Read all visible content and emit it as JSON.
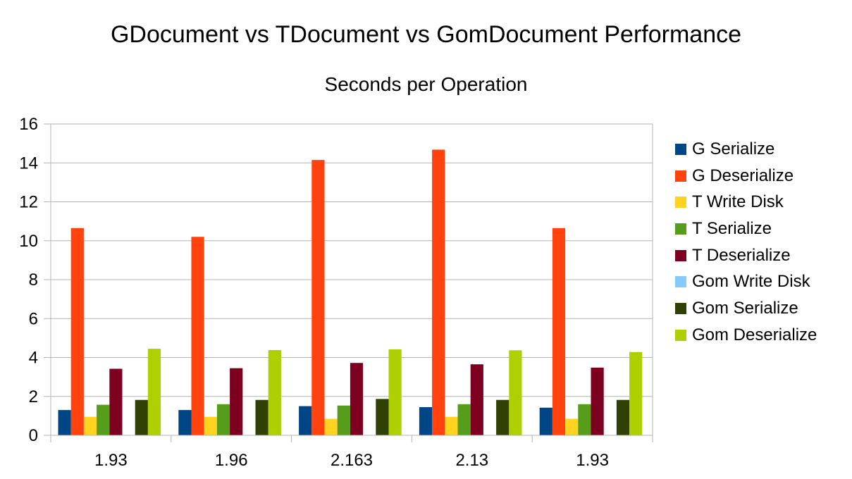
{
  "chart_data": {
    "type": "bar",
    "title": "GDocument vs TDocument vs GomDocument Performance",
    "subtitle": "Seconds per Operation",
    "xlabel": "",
    "ylabel": "",
    "ylim": [
      0,
      16
    ],
    "yticks": [
      0,
      2,
      4,
      6,
      8,
      10,
      12,
      14,
      16
    ],
    "grid": true,
    "legend_position": "right",
    "categories": [
      "1.93",
      "1.96",
      "2.163",
      "2.13",
      "1.93"
    ],
    "series": [
      {
        "name": "G Serialize",
        "color": "#004586",
        "values": [
          1.3,
          1.3,
          1.5,
          1.45,
          1.42
        ]
      },
      {
        "name": "G Deserialize",
        "color": "#ff420e",
        "values": [
          10.65,
          10.2,
          14.15,
          14.68,
          10.65
        ]
      },
      {
        "name": "T Write Disk",
        "color": "#ffd320",
        "values": [
          0.95,
          0.95,
          0.85,
          0.95,
          0.85
        ]
      },
      {
        "name": "T Serialize",
        "color": "#579d1c",
        "values": [
          1.57,
          1.6,
          1.53,
          1.6,
          1.6
        ]
      },
      {
        "name": "T Deserialize",
        "color": "#7e0021",
        "values": [
          3.42,
          3.45,
          3.72,
          3.65,
          3.48
        ]
      },
      {
        "name": "Gom Write Disk",
        "color": "#83caff",
        "values": [
          0,
          0,
          0,
          0,
          0
        ]
      },
      {
        "name": "Gom Serialize",
        "color": "#314004",
        "values": [
          1.82,
          1.82,
          1.87,
          1.82,
          1.82
        ]
      },
      {
        "name": "Gom Deserialize",
        "color": "#aecf00",
        "values": [
          4.45,
          4.38,
          4.42,
          4.37,
          4.28
        ]
      }
    ]
  }
}
